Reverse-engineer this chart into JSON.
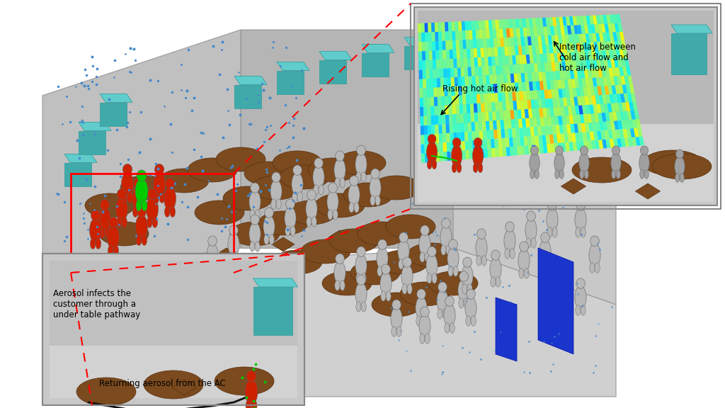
{
  "bg_color": "#ffffff",
  "room_floor_color": "#d2d2d2",
  "room_left_wall_color": "#c0c0c0",
  "room_back_wall_color": "#b8b8b8",
  "room_right_wall_color": "#cacaca",
  "table_color": "#7B4A1E",
  "table_edge_color": "#5a3010",
  "teal_color": "#40bbbb",
  "teal_dark": "#2a9999",
  "blue_door_color": "#1a35cc",
  "mannequin_gray": "#b8b8b8",
  "mannequin_red": "#cc2200",
  "mannequin_green": "#00aa00",
  "aerosol_dot_color": "#4488cc",
  "tr_panel_bg": "#c8c8c8",
  "bl_panel_bg": "#c8c8c8",
  "red_box_color": "red",
  "dashed_line_color": "red",
  "annotation_color": "black",
  "text_aerosol_infects": "Aerosol infects the\ncustomer through a\nunder table pathway",
  "text_returning": "Returning aerosol from the AC",
  "text_interplay": "Interplay between\ncold air flow and\nhot air flow",
  "text_rising": "Rising hot air flow"
}
